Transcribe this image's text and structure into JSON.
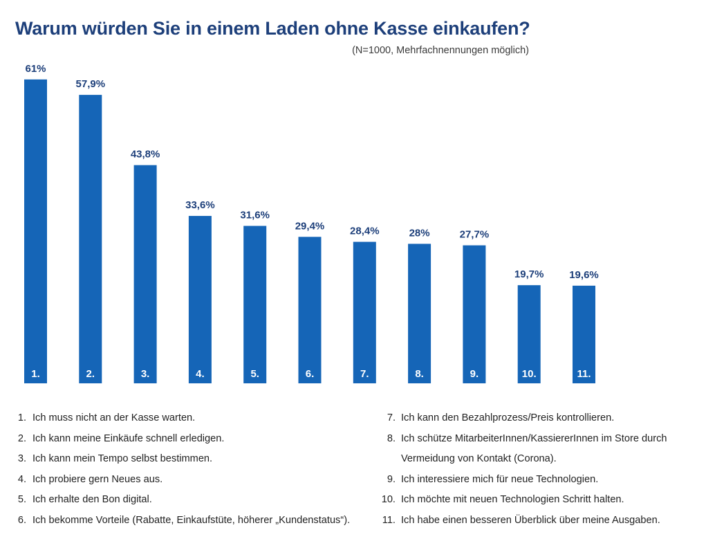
{
  "chart_data": {
    "type": "bar",
    "title": "Warum würden Sie in einem Laden ohne Kasse einkaufen?",
    "subtitle": "(N=1000, Mehrfachnennungen möglich)",
    "categories": [
      "1.",
      "2.",
      "3.",
      "4.",
      "5.",
      "6.",
      "7.",
      "8.",
      "9.",
      "10.",
      "11."
    ],
    "values": [
      61,
      57.9,
      43.8,
      33.6,
      31.6,
      29.4,
      28.4,
      28,
      27.7,
      19.7,
      19.6
    ],
    "value_labels": [
      "61%",
      "57,9%",
      "43,8%",
      "33,6%",
      "31,6%",
      "29,4%",
      "28,4%",
      "28%",
      "27,7%",
      "19,7%",
      "19,6%"
    ],
    "unit": "%",
    "bar_color": "#1565b7",
    "label_color": "#1d3f7a",
    "category_label_color": "#ffffff",
    "grid": false,
    "legend_position": "bottom",
    "legend": [
      {
        "num": "1.",
        "text": "Ich muss nicht an der Kasse warten."
      },
      {
        "num": "2.",
        "text": "Ich kann meine Einkäufe schnell erledigen."
      },
      {
        "num": "3.",
        "text": "Ich kann mein Tempo selbst bestimmen."
      },
      {
        "num": "4.",
        "text": "Ich probiere gern Neues aus."
      },
      {
        "num": "5.",
        "text": "Ich erhalte den Bon digital."
      },
      {
        "num": "6.",
        "text": "Ich bekomme Vorteile (Rabatte, Einkaufstüte, höherer „Kundenstatus“)."
      },
      {
        "num": "7.",
        "text": "Ich kann den Bezahlprozess/Preis kontrollieren."
      },
      {
        "num": "8.",
        "text": "Ich schütze MitarbeiterInnen/KassiererInnen im Store durch Vermeidung von Kontakt (Corona)."
      },
      {
        "num": "9.",
        "text": "Ich interessiere mich für neue Technologien."
      },
      {
        "num": "10.",
        "text": "Ich möchte mit neuen Technologien Schritt halten."
      },
      {
        "num": "11.",
        "text": "Ich habe einen besseren Überblick über meine Ausgaben."
      }
    ]
  }
}
